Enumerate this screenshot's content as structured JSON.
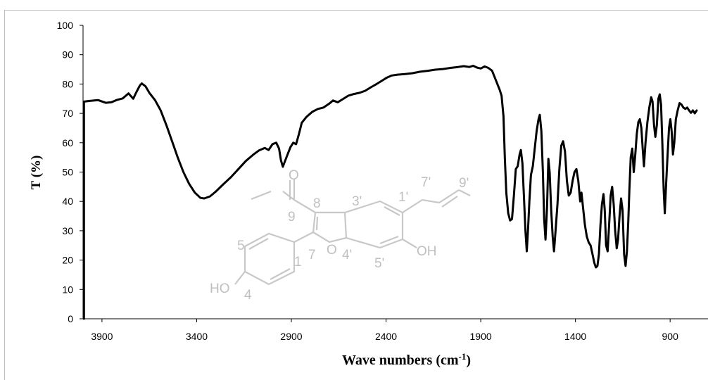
{
  "chart_data": {
    "type": "line",
    "xlabel": "Wave numbers (cm",
    "xlabel_sup": "-1",
    "xlabel_close": ")",
    "ylabel": "T (%)",
    "xlim": [
      4000,
      700
    ],
    "ylim": [
      0,
      100
    ],
    "x_ticks": [
      3900,
      3400,
      2900,
      2400,
      1900,
      1400,
      900
    ],
    "y_ticks": [
      0,
      10,
      20,
      30,
      40,
      50,
      60,
      70,
      80,
      90,
      100
    ],
    "grid": false,
    "legend": "none",
    "series": [
      {
        "color": "#000000",
        "points": [
          [
            3995,
            74
          ],
          [
            3960,
            74.3
          ],
          [
            3920,
            74.5
          ],
          [
            3880,
            73.6
          ],
          [
            3850,
            73.8
          ],
          [
            3820,
            74.6
          ],
          [
            3790,
            75.1
          ],
          [
            3760,
            76.8
          ],
          [
            3735,
            75
          ],
          [
            3720,
            77
          ],
          [
            3700,
            79.5
          ],
          [
            3690,
            80.2
          ],
          [
            3670,
            79.2
          ],
          [
            3650,
            77
          ],
          [
            3620,
            74.5
          ],
          [
            3590,
            71
          ],
          [
            3560,
            66
          ],
          [
            3530,
            60.5
          ],
          [
            3500,
            55
          ],
          [
            3470,
            50
          ],
          [
            3440,
            46
          ],
          [
            3410,
            43
          ],
          [
            3380,
            41.2
          ],
          [
            3360,
            41
          ],
          [
            3330,
            41.7
          ],
          [
            3300,
            43.3
          ],
          [
            3260,
            45.8
          ],
          [
            3220,
            48.2
          ],
          [
            3180,
            51
          ],
          [
            3140,
            53.8
          ],
          [
            3100,
            56
          ],
          [
            3070,
            57.4
          ],
          [
            3040,
            58.2
          ],
          [
            3020,
            57.5
          ],
          [
            3000,
            59.5
          ],
          [
            2980,
            60
          ],
          [
            2965,
            58
          ],
          [
            2955,
            54
          ],
          [
            2945,
            51.8
          ],
          [
            2935,
            53.5
          ],
          [
            2920,
            56
          ],
          [
            2905,
            58.5
          ],
          [
            2890,
            60
          ],
          [
            2875,
            59.5
          ],
          [
            2860,
            63
          ],
          [
            2845,
            66.8
          ],
          [
            2820,
            68.8
          ],
          [
            2790,
            70.5
          ],
          [
            2760,
            71.5
          ],
          [
            2730,
            72
          ],
          [
            2700,
            73.3
          ],
          [
            2680,
            74.4
          ],
          [
            2655,
            73.8
          ],
          [
            2630,
            74.8
          ],
          [
            2600,
            76
          ],
          [
            2570,
            76.6
          ],
          [
            2540,
            77
          ],
          [
            2510,
            77.7
          ],
          [
            2480,
            78.9
          ],
          [
            2450,
            80
          ],
          [
            2420,
            81.2
          ],
          [
            2395,
            82.2
          ],
          [
            2370,
            82.9
          ],
          [
            2340,
            83.2
          ],
          [
            2300,
            83.4
          ],
          [
            2260,
            83.7
          ],
          [
            2220,
            84.2
          ],
          [
            2180,
            84.5
          ],
          [
            2140,
            84.9
          ],
          [
            2100,
            85.1
          ],
          [
            2060,
            85.5
          ],
          [
            2020,
            85.8
          ],
          [
            1990,
            86.1
          ],
          [
            1960,
            85.8
          ],
          [
            1940,
            86.2
          ],
          [
            1920,
            85.6
          ],
          [
            1900,
            85.3
          ],
          [
            1880,
            86
          ],
          [
            1860,
            85.5
          ],
          [
            1840,
            84.5
          ],
          [
            1820,
            81.3
          ],
          [
            1800,
            78
          ],
          [
            1790,
            76
          ],
          [
            1780,
            69
          ],
          [
            1773,
            55
          ],
          [
            1765,
            43
          ],
          [
            1755,
            36
          ],
          [
            1745,
            33.5
          ],
          [
            1735,
            34
          ],
          [
            1725,
            42
          ],
          [
            1715,
            51
          ],
          [
            1705,
            52
          ],
          [
            1695,
            56
          ],
          [
            1688,
            57.5
          ],
          [
            1680,
            53
          ],
          [
            1672,
            42
          ],
          [
            1664,
            30
          ],
          [
            1657,
            23
          ],
          [
            1650,
            31
          ],
          [
            1643,
            40
          ],
          [
            1635,
            49
          ],
          [
            1625,
            52
          ],
          [
            1615,
            58
          ],
          [
            1605,
            64
          ],
          [
            1595,
            68
          ],
          [
            1588,
            69.5
          ],
          [
            1580,
            64
          ],
          [
            1572,
            50
          ],
          [
            1565,
            34
          ],
          [
            1558,
            27
          ],
          [
            1550,
            38
          ],
          [
            1543,
            54.5
          ],
          [
            1536,
            50
          ],
          [
            1528,
            37
          ],
          [
            1520,
            28
          ],
          [
            1513,
            23
          ],
          [
            1505,
            30
          ],
          [
            1495,
            39
          ],
          [
            1485,
            51
          ],
          [
            1475,
            59
          ],
          [
            1465,
            60.5
          ],
          [
            1455,
            57
          ],
          [
            1445,
            47
          ],
          [
            1435,
            42
          ],
          [
            1425,
            43
          ],
          [
            1415,
            47
          ],
          [
            1405,
            50
          ],
          [
            1395,
            51
          ],
          [
            1385,
            47
          ],
          [
            1375,
            40
          ],
          [
            1368,
            43
          ],
          [
            1360,
            38
          ],
          [
            1350,
            32
          ],
          [
            1340,
            28
          ],
          [
            1330,
            26
          ],
          [
            1320,
            25
          ],
          [
            1310,
            22
          ],
          [
            1300,
            19
          ],
          [
            1292,
            17.5
          ],
          [
            1284,
            18
          ],
          [
            1276,
            22
          ],
          [
            1268,
            32
          ],
          [
            1260,
            39
          ],
          [
            1252,
            42.5
          ],
          [
            1245,
            37
          ],
          [
            1238,
            25
          ],
          [
            1230,
            23
          ],
          [
            1222,
            32
          ],
          [
            1214,
            42
          ],
          [
            1206,
            45
          ],
          [
            1198,
            39
          ],
          [
            1190,
            30
          ],
          [
            1182,
            24
          ],
          [
            1175,
            27
          ],
          [
            1167,
            35
          ],
          [
            1159,
            41
          ],
          [
            1151,
            37
          ],
          [
            1143,
            22
          ],
          [
            1135,
            18
          ],
          [
            1128,
            23
          ],
          [
            1121,
            33
          ],
          [
            1115,
            44
          ],
          [
            1108,
            55
          ],
          [
            1100,
            58
          ],
          [
            1092,
            50
          ],
          [
            1084,
            56
          ],
          [
            1076,
            63
          ],
          [
            1068,
            67
          ],
          [
            1060,
            68
          ],
          [
            1052,
            65
          ],
          [
            1045,
            58
          ],
          [
            1038,
            52
          ],
          [
            1030,
            60
          ],
          [
            1020,
            67
          ],
          [
            1010,
            72
          ],
          [
            1000,
            75.5
          ],
          [
            993,
            74
          ],
          [
            985,
            66
          ],
          [
            978,
            62
          ],
          [
            970,
            66
          ],
          [
            962,
            75
          ],
          [
            955,
            76.5
          ],
          [
            948,
            73
          ],
          [
            941,
            60
          ],
          [
            934,
            44
          ],
          [
            928,
            36
          ],
          [
            921,
            46
          ],
          [
            914,
            55
          ],
          [
            906,
            65
          ],
          [
            899,
            68
          ],
          [
            892,
            64
          ],
          [
            885,
            56
          ],
          [
            878,
            60
          ],
          [
            870,
            68
          ],
          [
            860,
            71
          ],
          [
            850,
            73.5
          ],
          [
            840,
            73
          ],
          [
            830,
            72
          ],
          [
            820,
            71.5
          ],
          [
            810,
            72
          ],
          [
            800,
            71
          ],
          [
            790,
            70.2
          ],
          [
            780,
            71
          ],
          [
            770,
            70
          ],
          [
            760,
            71
          ]
        ]
      }
    ],
    "structure_labels": {
      "c8": "8",
      "c9": "9",
      "c3p": "3'",
      "c1p": "1'",
      "c7p": "7'",
      "c9p": "9'",
      "c5": "5",
      "c7": "7",
      "c1": "1",
      "c4p": "4'",
      "c5p": "5'",
      "c4": "4",
      "o_ring": "O",
      "o_ester": "O",
      "oh_right": "OH",
      "ho_left": "HO"
    }
  }
}
